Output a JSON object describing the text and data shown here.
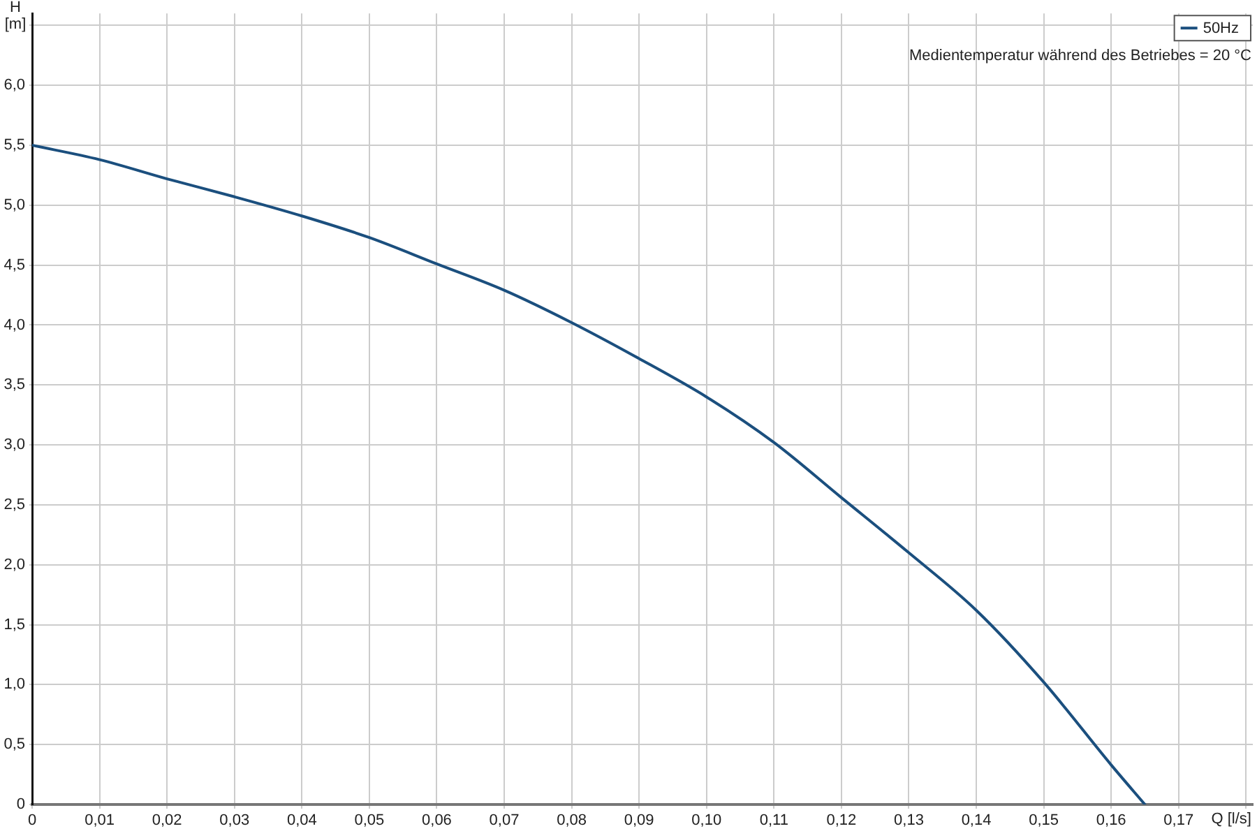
{
  "chart_data": {
    "type": "line",
    "xlabel": "Q [l/s]",
    "ylabel": "H [m]",
    "x": [
      0,
      0.01,
      0.02,
      0.03,
      0.04,
      0.05,
      0.06,
      0.07,
      0.08,
      0.09,
      0.1,
      0.11,
      0.12,
      0.13,
      0.14,
      0.15,
      0.16,
      0.165
    ],
    "series": [
      {
        "name": "50Hz",
        "color": "#1b4f7e",
        "values": [
          5.5,
          5.38,
          5.22,
          5.07,
          4.91,
          4.73,
          4.51,
          4.29,
          4.02,
          3.72,
          3.4,
          3.02,
          2.56,
          2.1,
          1.62,
          1.02,
          0.33,
          0
        ]
      }
    ],
    "xlim": [
      0,
      0.181
    ],
    "xticks": [
      0,
      {
        "value": 0.01,
        "label": "0,01"
      },
      {
        "value": 0.02,
        "label": "0,02"
      },
      {
        "value": 0.03,
        "label": "0,03"
      },
      {
        "value": 0.04,
        "label": "0,04"
      },
      {
        "value": 0.05,
        "label": "0,05"
      },
      {
        "value": 0.06,
        "label": "0,06"
      },
      {
        "value": 0.07,
        "label": "0,07"
      },
      {
        "value": 0.08,
        "label": "0,08"
      },
      {
        "value": 0.09,
        "label": "0,09"
      },
      {
        "value": 0.1,
        "label": "0,10"
      },
      {
        "value": 0.11,
        "label": "0,11"
      },
      {
        "value": 0.12,
        "label": "0,12"
      },
      {
        "value": 0.13,
        "label": "0,13"
      },
      {
        "value": 0.14,
        "label": "0,14"
      },
      {
        "value": 0.15,
        "label": "0,15"
      },
      {
        "value": 0.16,
        "label": "0,16"
      },
      {
        "value": 0.17,
        "label": "0,17"
      },
      {
        "value": 0.18,
        "label": null
      }
    ],
    "ylim": [
      0,
      6.6
    ],
    "yticks": [
      0,
      {
        "value": 0.5,
        "label": "0,5"
      },
      {
        "value": 1,
        "label": "1,0"
      },
      {
        "value": 1.5,
        "label": "1,5"
      },
      {
        "value": 2,
        "label": "2,0"
      },
      {
        "value": 2.5,
        "label": "2,5"
      },
      {
        "value": 3,
        "label": "3,0"
      },
      {
        "value": 3.5,
        "label": "3,5"
      },
      {
        "value": 4,
        "label": "4,0"
      },
      {
        "value": 4.5,
        "label": "4,5"
      },
      {
        "value": 5,
        "label": "5,0"
      },
      {
        "value": 5.5,
        "label": "5,5"
      },
      {
        "value": 6,
        "label": "6,0"
      },
      {
        "value": 6.5,
        "label": null
      }
    ],
    "grid": true,
    "legend": "top right",
    "marker": "none",
    "line_style": "solid",
    "annotations": [
      "Medientemperatur während des Betriebes = 20 °C"
    ]
  }
}
